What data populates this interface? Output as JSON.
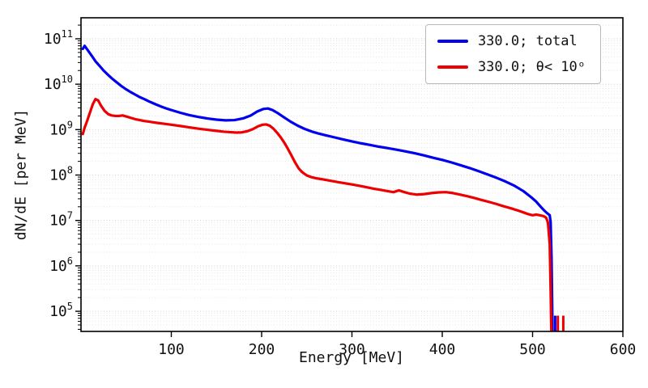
{
  "figure": {
    "background": "#ffffff"
  },
  "chart_data": {
    "type": "line",
    "title": "",
    "xlabel": "Energy [MeV]",
    "ylabel": "dN/dE [per MeV]",
    "xlim": [
      0,
      600
    ],
    "ylim": [
      36000,
      290000000000
    ],
    "yscale": "log",
    "xticks": [
      100,
      200,
      300,
      400,
      500,
      600
    ],
    "ytick_exponents": [
      5,
      6,
      7,
      8,
      9,
      10,
      11
    ],
    "grid": {
      "horizontal": "major+minor dotted",
      "vertical": "none"
    },
    "legend_position": "upper right",
    "series": [
      {
        "name": "330.0; total",
        "color": "#0000ee",
        "linewidth": 3.2,
        "points": [
          [
            2,
            60000000000.0
          ],
          [
            4,
            70000000000.0
          ],
          [
            7,
            58000000000.0
          ],
          [
            12,
            42000000000.0
          ],
          [
            16,
            32000000000.0
          ],
          [
            20,
            26000000000.0
          ],
          [
            25,
            20000000000.0
          ],
          [
            30,
            16000000000.0
          ],
          [
            35,
            13000000000.0
          ],
          [
            40,
            10800000000.0
          ],
          [
            45,
            9000000000.0
          ],
          [
            50,
            7700000000.0
          ],
          [
            55,
            6700000000.0
          ],
          [
            60,
            5900000000.0
          ],
          [
            65,
            5200000000.0
          ],
          [
            70,
            4700000000.0
          ],
          [
            75,
            4200000000.0
          ],
          [
            80,
            3800000000.0
          ],
          [
            85,
            3450000000.0
          ],
          [
            90,
            3150000000.0
          ],
          [
            95,
            2900000000.0
          ],
          [
            100,
            2700000000.0
          ],
          [
            110,
            2350000000.0
          ],
          [
            120,
            2080000000.0
          ],
          [
            130,
            1900000000.0
          ],
          [
            140,
            1760000000.0
          ],
          [
            150,
            1660000000.0
          ],
          [
            160,
            1600000000.0
          ],
          [
            170,
            1620000000.0
          ],
          [
            180,
            1780000000.0
          ],
          [
            188,
            2050000000.0
          ],
          [
            195,
            2500000000.0
          ],
          [
            202,
            2850000000.0
          ],
          [
            207,
            2920000000.0
          ],
          [
            212,
            2700000000.0
          ],
          [
            218,
            2300000000.0
          ],
          [
            225,
            1850000000.0
          ],
          [
            232,
            1500000000.0
          ],
          [
            240,
            1220000000.0
          ],
          [
            248,
            1030000000.0
          ],
          [
            256,
            900000000.0
          ],
          [
            264,
            810000000.0
          ],
          [
            272,
            740000000.0
          ],
          [
            280,
            680000000.0
          ],
          [
            290,
            610000000.0
          ],
          [
            300,
            550000000.0
          ],
          [
            310,
            500000000.0
          ],
          [
            320,
            460000000.0
          ],
          [
            330,
            420000000.0
          ],
          [
            340,
            390000000.0
          ],
          [
            350,
            360000000.0
          ],
          [
            360,
            330000000.0
          ],
          [
            370,
            300000000.0
          ],
          [
            380,
            270000000.0
          ],
          [
            390,
            240000000.0
          ],
          [
            400,
            215000000.0
          ],
          [
            410,
            190000000.0
          ],
          [
            420,
            165000000.0
          ],
          [
            430,
            143000000.0
          ],
          [
            440,
            122000000.0
          ],
          [
            450,
            103000000.0
          ],
          [
            460,
            87000000.0
          ],
          [
            470,
            72000000.0
          ],
          [
            480,
            58000000.0
          ],
          [
            490,
            44000000.0
          ],
          [
            498,
            33000000.0
          ],
          [
            504,
            26000000.0
          ],
          [
            509,
            20000000.0
          ],
          [
            513,
            16500000.0
          ],
          [
            516,
            14500000.0
          ],
          [
            519,
            13000000.0
          ],
          [
            520,
            9000000.0
          ],
          [
            521,
            1500000.0
          ],
          [
            521.8,
            90000.0
          ],
          [
            522,
            36000.0
          ]
        ]
      },
      {
        "name": "330.0; θ< 10ᵒ",
        "color": "#ee0000",
        "linewidth": 3.2,
        "points": [
          [
            2,
            800000000.0
          ],
          [
            4,
            1100000000.0
          ],
          [
            7,
            1600000000.0
          ],
          [
            10,
            2400000000.0
          ],
          [
            13,
            3600000000.0
          ],
          [
            16,
            4700000000.0
          ],
          [
            19,
            4400000000.0
          ],
          [
            22,
            3400000000.0
          ],
          [
            26,
            2600000000.0
          ],
          [
            30,
            2200000000.0
          ],
          [
            34,
            2050000000.0
          ],
          [
            38,
            2000000000.0
          ],
          [
            42,
            2000000000.0
          ],
          [
            46,
            2050000000.0
          ],
          [
            50,
            1950000000.0
          ],
          [
            55,
            1820000000.0
          ],
          [
            60,
            1700000000.0
          ],
          [
            65,
            1620000000.0
          ],
          [
            70,
            1550000000.0
          ],
          [
            75,
            1500000000.0
          ],
          [
            80,
            1450000000.0
          ],
          [
            85,
            1400000000.0
          ],
          [
            90,
            1360000000.0
          ],
          [
            95,
            1320000000.0
          ],
          [
            100,
            1280000000.0
          ],
          [
            110,
            1200000000.0
          ],
          [
            120,
            1120000000.0
          ],
          [
            130,
            1050000000.0
          ],
          [
            140,
            990000000.0
          ],
          [
            150,
            940000000.0
          ],
          [
            158,
            900000000.0
          ],
          [
            165,
            880000000.0
          ],
          [
            172,
            860000000.0
          ],
          [
            178,
            870000000.0
          ],
          [
            184,
            920000000.0
          ],
          [
            190,
            1020000000.0
          ],
          [
            196,
            1180000000.0
          ],
          [
            201,
            1280000000.0
          ],
          [
            205,
            1300000000.0
          ],
          [
            209,
            1220000000.0
          ],
          [
            213,
            1050000000.0
          ],
          [
            217,
            860000000.0
          ],
          [
            221,
            680000000.0
          ],
          [
            225,
            520000000.0
          ],
          [
            229,
            380000000.0
          ],
          [
            233,
            270000000.0
          ],
          [
            237,
            190000000.0
          ],
          [
            241,
            140000000.0
          ],
          [
            245,
            115000000.0
          ],
          [
            250,
            98000000.0
          ],
          [
            255,
            90000000.0
          ],
          [
            260,
            85000000.0
          ],
          [
            268,
            80000000.0
          ],
          [
            276,
            75000000.0
          ],
          [
            284,
            70000000.0
          ],
          [
            292,
            66000000.0
          ],
          [
            300,
            62000000.0
          ],
          [
            308,
            58000000.0
          ],
          [
            316,
            54000000.0
          ],
          [
            324,
            50000000.0
          ],
          [
            332,
            47000000.0
          ],
          [
            340,
            44000000.0
          ],
          [
            346,
            42000000.0
          ],
          [
            352,
            46000000.0
          ],
          [
            358,
            42000000.0
          ],
          [
            364,
            39000000.0
          ],
          [
            372,
            37000000.0
          ],
          [
            380,
            38000000.0
          ],
          [
            388,
            40000000.0
          ],
          [
            396,
            41500000.0
          ],
          [
            404,
            42000000.0
          ],
          [
            412,
            40000000.0
          ],
          [
            420,
            37000000.0
          ],
          [
            428,
            34000000.0
          ],
          [
            436,
            31000000.0
          ],
          [
            444,
            28000000.0
          ],
          [
            452,
            25500000.0
          ],
          [
            460,
            23000000.0
          ],
          [
            468,
            20500000.0
          ],
          [
            476,
            18500000.0
          ],
          [
            484,
            16500000.0
          ],
          [
            490,
            15000000.0
          ],
          [
            495,
            13800000.0
          ],
          [
            500,
            13000000.0
          ],
          [
            504,
            13500000.0
          ],
          [
            508,
            13000000.0
          ],
          [
            512,
            12500000.0
          ],
          [
            515,
            11500000.0
          ],
          [
            517,
            9000000.0
          ],
          [
            519,
            3000000.0
          ],
          [
            520,
            300000.0
          ],
          [
            520.8,
            36000.0
          ]
        ]
      }
    ],
    "end_spikes": [
      {
        "x": 525,
        "series": 0,
        "top": 80000
      },
      {
        "x": 528,
        "series": 1,
        "top": 80000
      },
      {
        "x": 534,
        "series": 1,
        "top": 80000
      }
    ]
  }
}
